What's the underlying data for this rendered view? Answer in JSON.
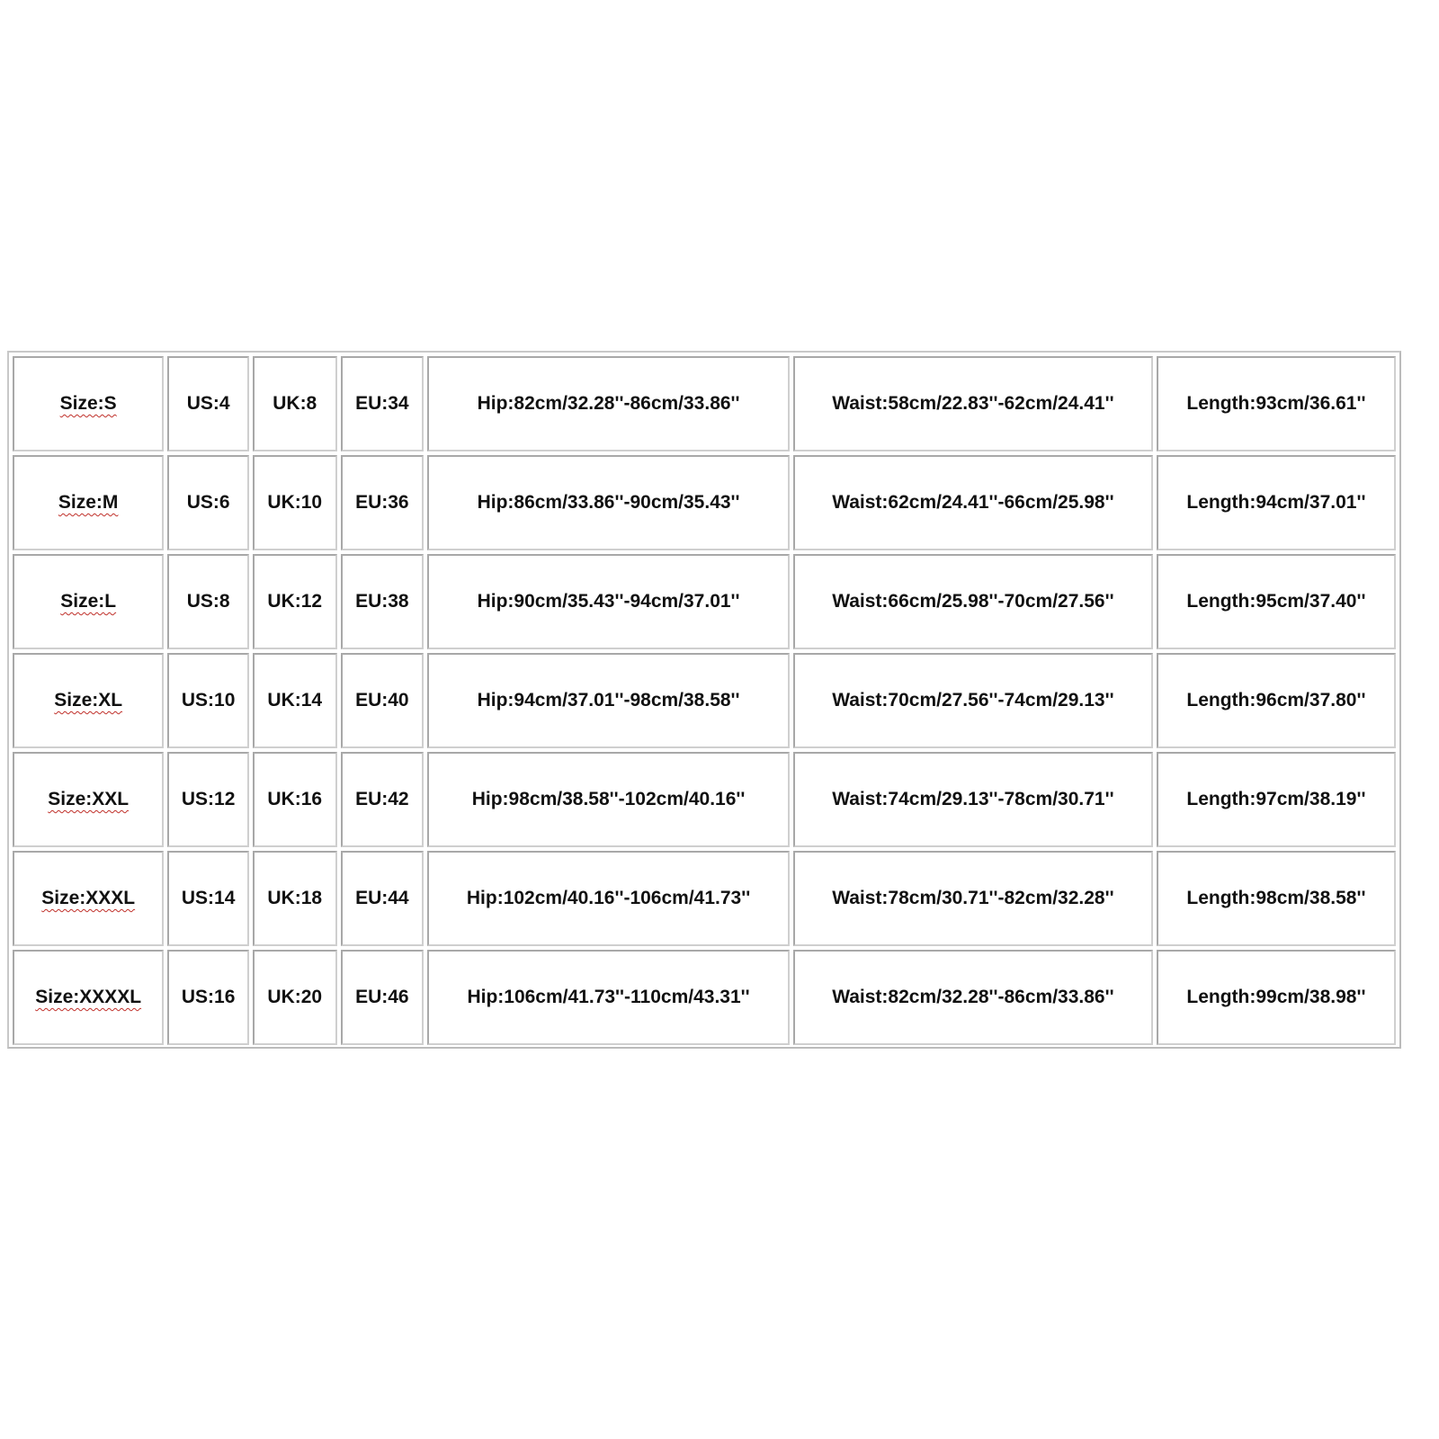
{
  "rows": [
    [
      "Size:S",
      "US:4",
      "UK:8",
      "EU:34",
      "Hip:82cm/32.28''-86cm/33.86''",
      "Waist:58cm/22.83''-62cm/24.41''",
      "Length:93cm/36.61''"
    ],
    [
      "Size:M",
      "US:6",
      "UK:10",
      "EU:36",
      "Hip:86cm/33.86''-90cm/35.43''",
      "Waist:62cm/24.41''-66cm/25.98''",
      "Length:94cm/37.01''"
    ],
    [
      "Size:L",
      "US:8",
      "UK:12",
      "EU:38",
      "Hip:90cm/35.43''-94cm/37.01''",
      "Waist:66cm/25.98''-70cm/27.56''",
      "Length:95cm/37.40''"
    ],
    [
      "Size:XL",
      "US:10",
      "UK:14",
      "EU:40",
      "Hip:94cm/37.01''-98cm/38.58''",
      "Waist:70cm/27.56''-74cm/29.13''",
      "Length:96cm/37.80''"
    ],
    [
      "Size:XXL",
      "US:12",
      "UK:16",
      "EU:42",
      "Hip:98cm/38.58''-102cm/40.16''",
      "Waist:74cm/29.13''-78cm/30.71''",
      "Length:97cm/38.19''"
    ],
    [
      "Size:XXXL",
      "US:14",
      "UK:18",
      "EU:44",
      "Hip:102cm/40.16''-106cm/41.73''",
      "Waist:78cm/30.71''-82cm/32.28''",
      "Length:98cm/38.58''"
    ],
    [
      "Size:XXXXL",
      "US:16",
      "UK:20",
      "EU:46",
      "Hip:106cm/41.73''-110cm/43.31''",
      "Waist:82cm/32.28''-86cm/33.86''",
      "Length:99cm/38.98''"
    ]
  ],
  "colors": {
    "text": "#111111",
    "border": "#a8a8a8",
    "spellcheck_underline": "#c0302a"
  }
}
